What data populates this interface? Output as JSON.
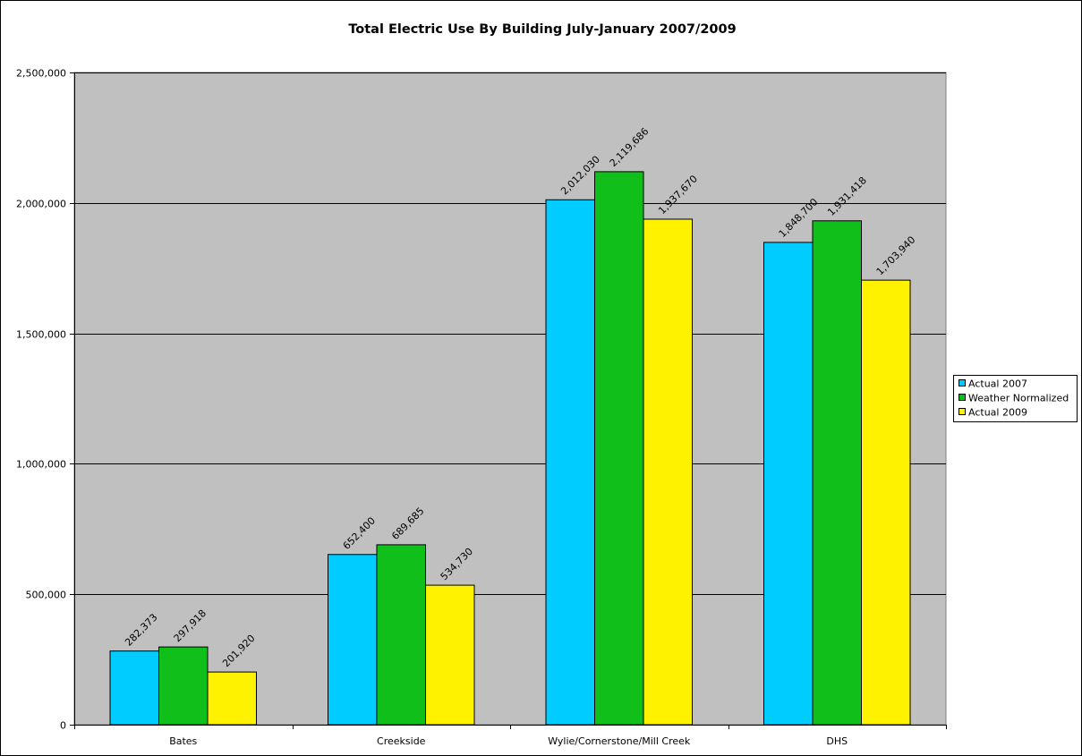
{
  "chart_data": {
    "type": "bar",
    "title": "Total Electric Use By Building July-January 2007/2009",
    "xlabel": "",
    "ylabel": "",
    "categories": [
      "Bates",
      "Creekside",
      "Wylie/Cornerstone/Mill Creek",
      "DHS"
    ],
    "series": [
      {
        "name": "Actual 2007",
        "color": "#00CCFF",
        "values": [
          282373,
          652400,
          2012030,
          1848700
        ]
      },
      {
        "name": "Weather Normalized",
        "color": "#11BF1B",
        "values": [
          297918,
          689685,
          2119686,
          1931418
        ]
      },
      {
        "name": "Actual 2009",
        "color": "#FFF200",
        "values": [
          201920,
          534730,
          1937670,
          1703940
        ]
      }
    ],
    "data_labels": [
      [
        "282,373",
        "652,400",
        "2,012,030",
        "1,848,700"
      ],
      [
        "297,918",
        "689,685",
        "2,119,686",
        "1,931,418"
      ],
      [
        "201,920",
        "534,730",
        "1,937,670",
        "1,703,940"
      ]
    ],
    "ylim": [
      0,
      2500000
    ],
    "y_ticks": [
      0,
      500000,
      1000000,
      1500000,
      2000000,
      2500000
    ],
    "y_tick_labels": [
      "0",
      "500,000",
      "1,000,000",
      "1,500,000",
      "2,000,000",
      "2,500,000"
    ],
    "grid": true,
    "plot_background": "#C0C0C0",
    "legend_position": "right"
  }
}
